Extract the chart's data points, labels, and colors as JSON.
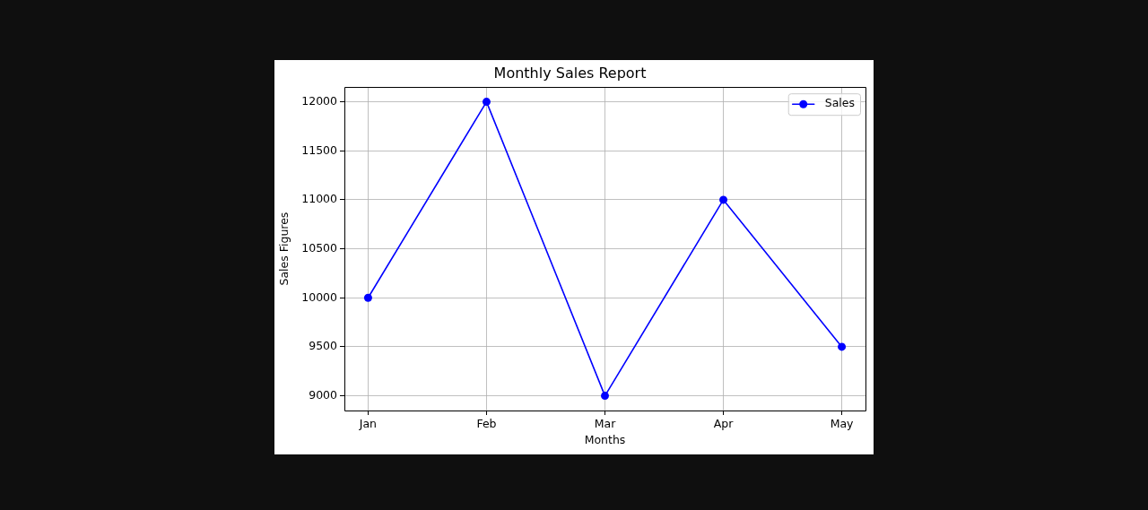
{
  "chart_data": {
    "type": "line",
    "title": "Monthly Sales Report",
    "xlabel": "Months",
    "ylabel": "Sales Figures",
    "categories": [
      "Jan",
      "Feb",
      "Mar",
      "Apr",
      "May"
    ],
    "series": [
      {
        "name": "Sales",
        "color": "#0000ff",
        "values": [
          10000,
          12000,
          9000,
          11000,
          9500
        ]
      }
    ],
    "ylim": [
      8850,
      12150
    ],
    "yticks": [
      9000,
      9500,
      10000,
      10500,
      11000,
      11500,
      12000
    ],
    "grid": true,
    "legend": "top right",
    "marker": "circle",
    "line_style": "solid"
  }
}
